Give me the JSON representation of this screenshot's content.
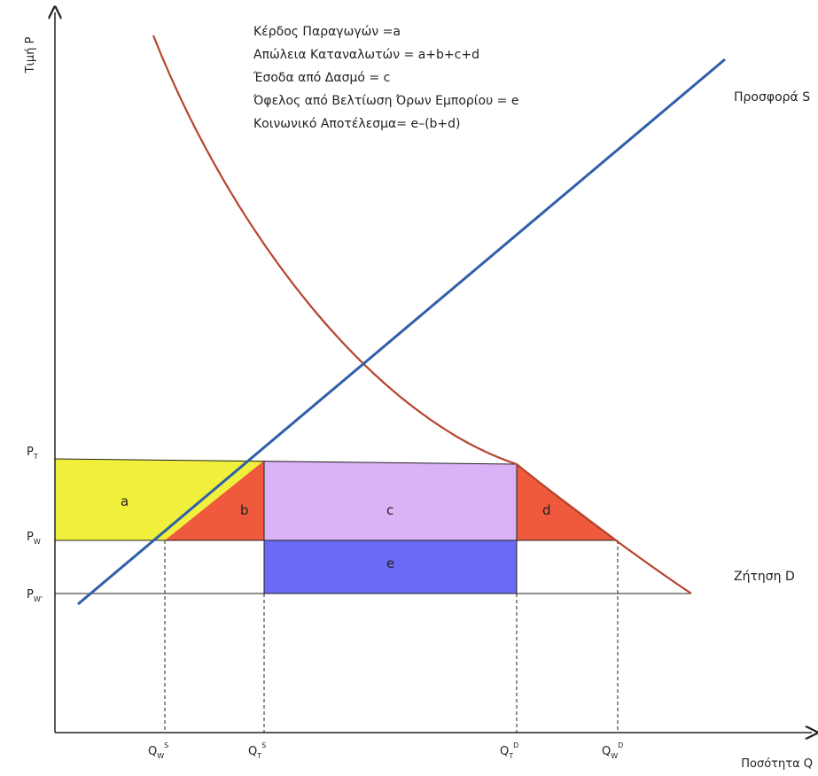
{
  "legend": {
    "line1": "Κέρδος Παραγωγών =a",
    "line2": "Απώλεια Καταναλωτών = a+b+c+d",
    "line3": "Έσοδα από Δασμό = c",
    "line4": "Όφελος από Βελτίωση Όρων Εμπορίου = e",
    "line5": "Κοινωνικό Αποτέλεσμα= e–(b+d)"
  },
  "axes": {
    "y_label": "Τιμή P",
    "x_label": "Ποσότητα Q"
  },
  "curves": {
    "supply_label": "Προσφορά S",
    "demand_label": "Ζήτηση D",
    "supply_color": "#2e5fa8",
    "demand_color": "#b5452e"
  },
  "price_ticks": {
    "pt": {
      "base": "P",
      "sub": "T"
    },
    "pw": {
      "base": "P",
      "sub": "W"
    },
    "pw2": {
      "base": "P",
      "sub": "W'"
    }
  },
  "quantity_ticks": {
    "qws": {
      "base": "Q",
      "sub": "W",
      "sup": "S"
    },
    "qts": {
      "base": "Q",
      "sub": "T",
      "sup": "S"
    },
    "qtd": {
      "base": "Q",
      "sub": "T",
      "sup": "D"
    },
    "qwd": {
      "base": "Q",
      "sub": "W",
      "sup": "D"
    }
  },
  "regions": {
    "a": {
      "label": "a",
      "color": "#f0f03c"
    },
    "b": {
      "label": "b",
      "color": "#ef5a3c"
    },
    "c": {
      "label": "c",
      "color": "#d9b3f5"
    },
    "d": {
      "label": "d",
      "color": "#ef5a3c"
    },
    "e": {
      "label": "e",
      "color": "#6a6af5"
    }
  }
}
